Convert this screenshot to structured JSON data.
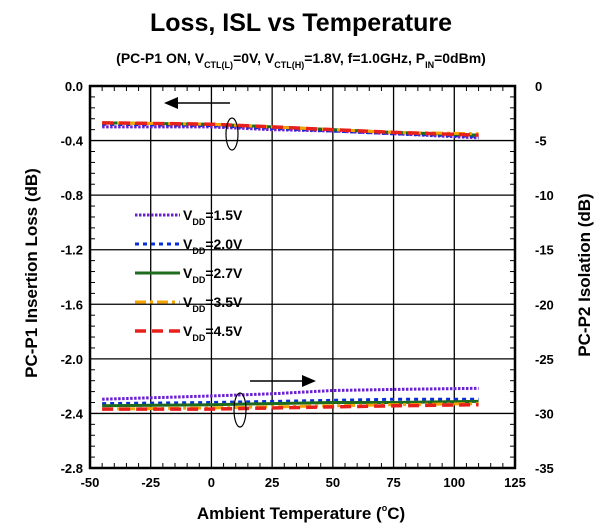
{
  "chart_data": {
    "type": "line",
    "title": "Loss, ISL vs Temperature",
    "subtitle_parts": {
      "p1": "(PC-P1 ON, V",
      "s1": "CTL(L)",
      "p2": "=0V, V",
      "s2": "CTL(H)",
      "p3": "=1.8V, f=1.0GHz, P",
      "s3": "IN",
      "p4": "=0dBm)"
    },
    "xlabel_parts": {
      "main": "Ambient Temperature  (",
      "sup": "o",
      "end": "C)"
    },
    "ylabel_left": "PC-P1 Insertion Loss  (dB)",
    "ylabel_right": "PC-P2 Isolation  (dB)",
    "xlim": [
      -50,
      125
    ],
    "ylim_left": [
      -2.8,
      0.0
    ],
    "ylim_right": [
      -35,
      0
    ],
    "x_ticks": [
      "-50",
      "-25",
      "0",
      "25",
      "50",
      "75",
      "100",
      "125"
    ],
    "y_left_ticks": [
      "0.0",
      "-0.4",
      "-0.8",
      "-1.2",
      "-1.6",
      "-2.0",
      "-2.4",
      "-2.8"
    ],
    "y_right_ticks": [
      "0",
      "-5",
      "-10",
      "-15",
      "-20",
      "-25",
      "-30",
      "-35"
    ],
    "grid": true,
    "legend_placement": "center-left",
    "x": [
      -45,
      0,
      25,
      50,
      75,
      110
    ],
    "series": [
      {
        "name_main": "V",
        "name_sub": "DD",
        "name_end": "=1.5V",
        "color": "#6a1fd1",
        "dash": "dotted",
        "insertion_loss": [
          -0.3,
          -0.3,
          -0.32,
          -0.33,
          -0.35,
          -0.38
        ],
        "isolation": [
          -28.7,
          -28.4,
          -28.2,
          -27.9,
          -27.8,
          -27.7
        ]
      },
      {
        "name_main": "V",
        "name_sub": "DD",
        "name_end": "=2.0V",
        "color": "#0a2ed6",
        "dash": "dash-fine",
        "insertion_loss": [
          -0.28,
          -0.29,
          -0.31,
          -0.33,
          -0.35,
          -0.37
        ],
        "isolation": [
          -29.1,
          -29.0,
          -28.9,
          -28.8,
          -28.7,
          -28.7
        ]
      },
      {
        "name_main": "V",
        "name_sub": "DD",
        "name_end": "=2.7V",
        "color": "#1e6b1e",
        "dash": "solid",
        "insertion_loss": [
          -0.27,
          -0.28,
          -0.3,
          -0.32,
          -0.34,
          -0.36
        ],
        "isolation": [
          -29.3,
          -29.2,
          -29.1,
          -29.0,
          -29.0,
          -28.9
        ]
      },
      {
        "name_main": "V",
        "name_sub": "DD",
        "name_end": "=3.5V",
        "color": "#f5a300",
        "dash": "dash-dot",
        "insertion_loss": [
          -0.27,
          -0.28,
          -0.3,
          -0.32,
          -0.34,
          -0.35
        ],
        "isolation": [
          -29.6,
          -29.5,
          -29.4,
          -29.3,
          -29.2,
          -29.1
        ]
      },
      {
        "name_main": "V",
        "name_sub": "DD",
        "name_end": "=4.5V",
        "color": "#e8201b",
        "dash": "dashed",
        "insertion_loss": [
          -0.27,
          -0.28,
          -0.3,
          -0.32,
          -0.34,
          -0.36
        ],
        "isolation": [
          -29.6,
          -29.6,
          -29.5,
          -29.4,
          -29.3,
          -29.2
        ]
      }
    ]
  }
}
